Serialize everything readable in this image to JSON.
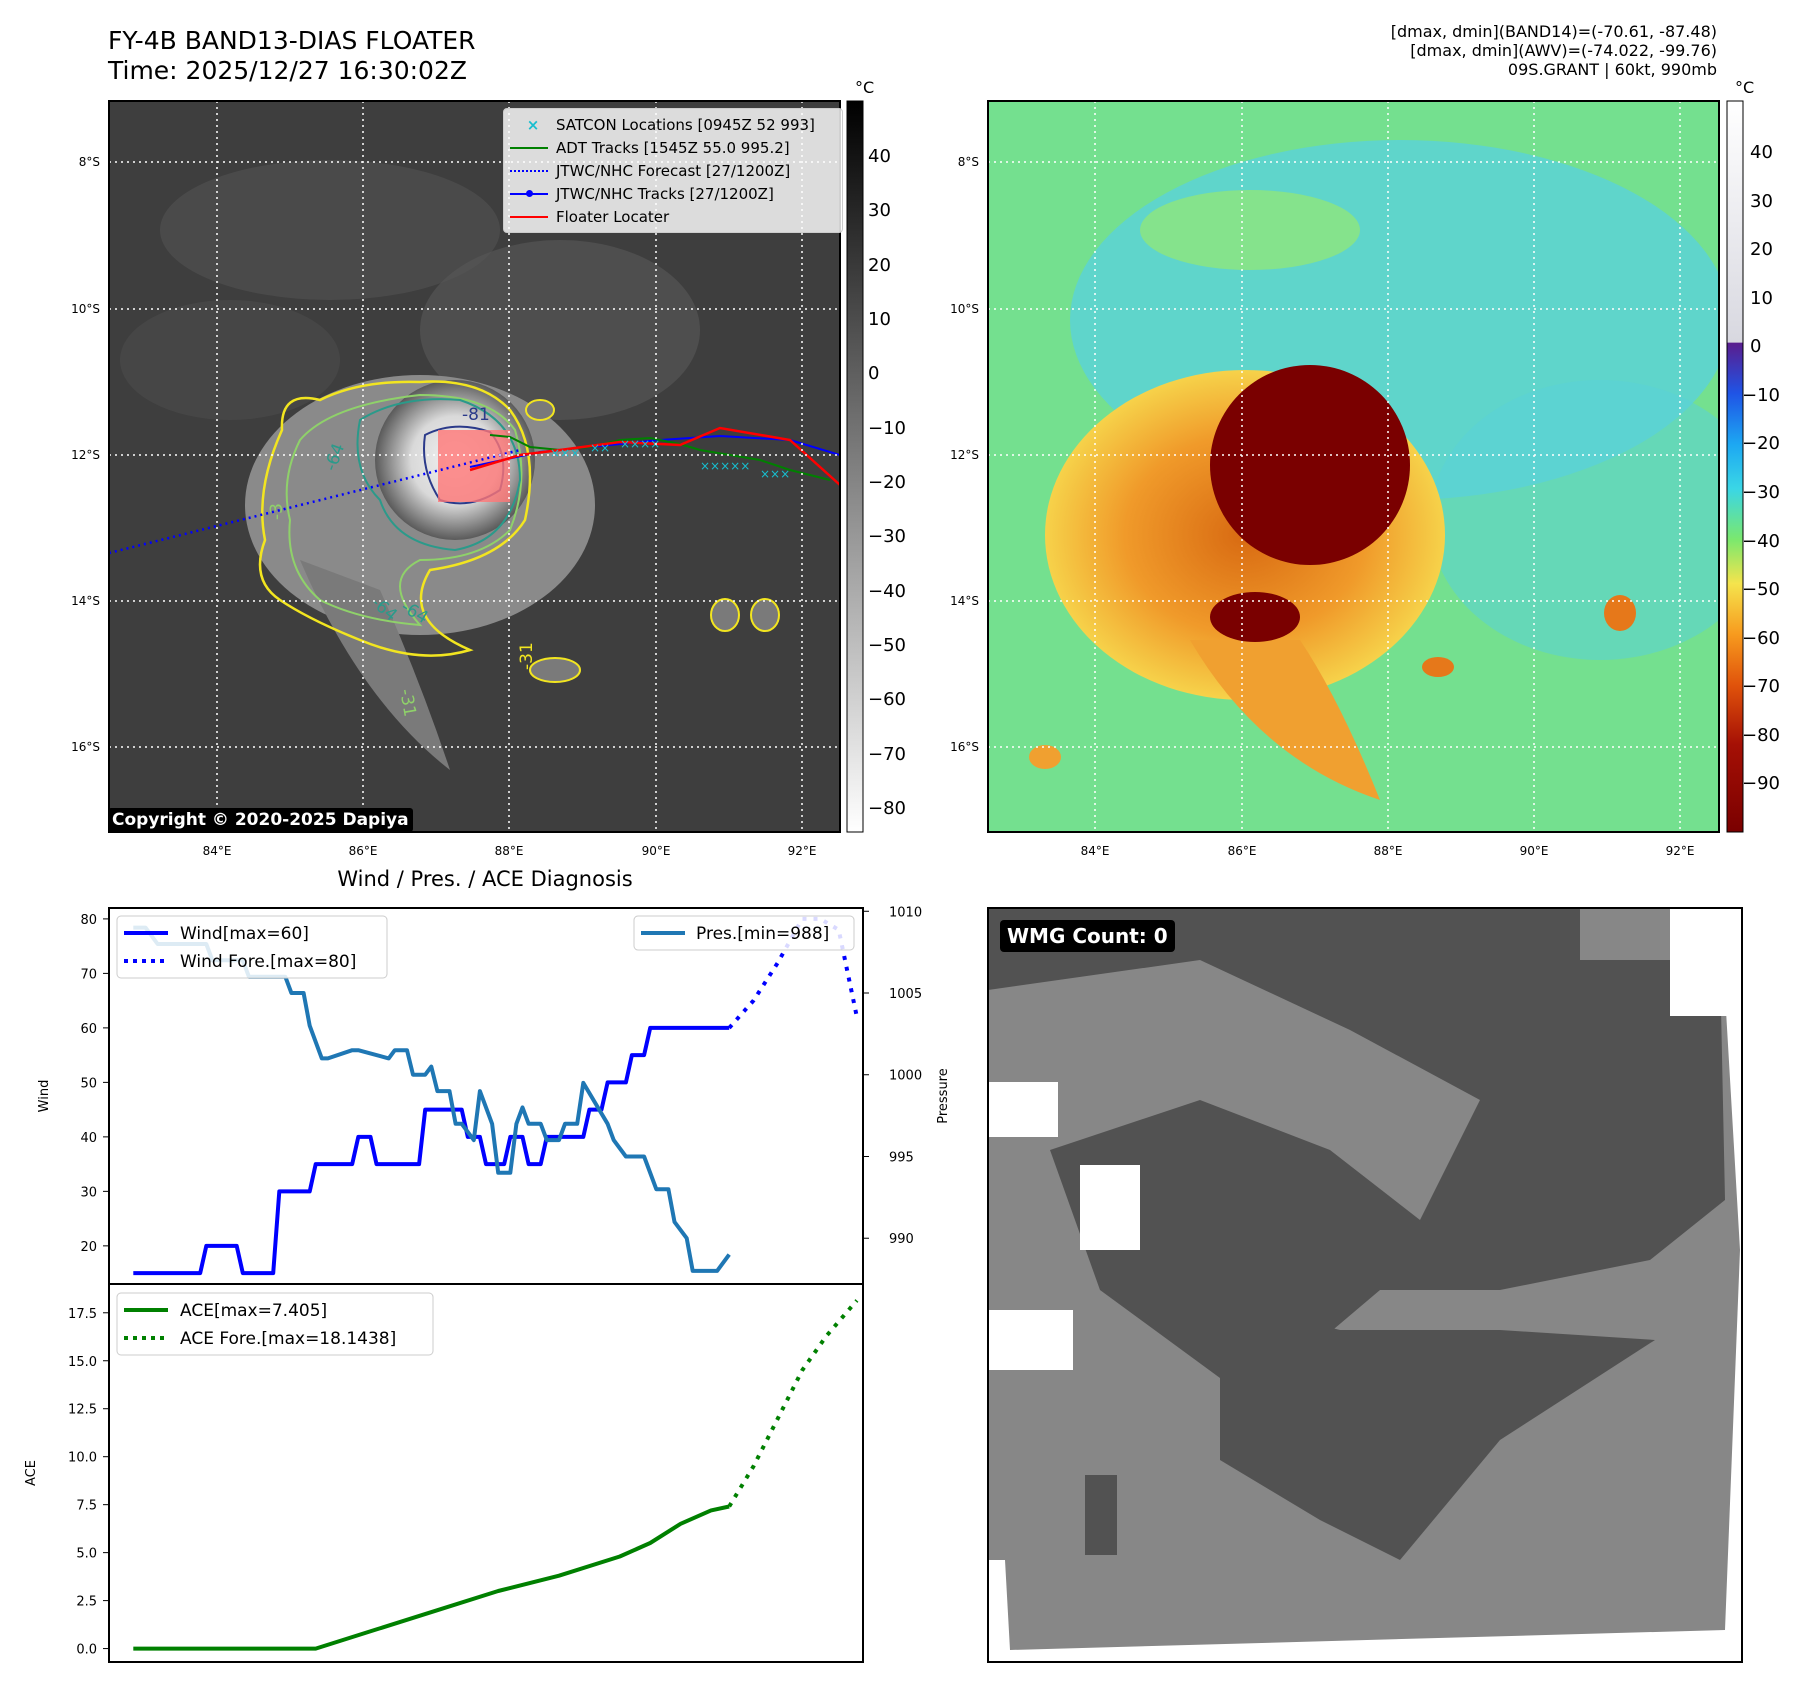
{
  "header": {
    "title_line1": "FY-4B BAND13-DIAS FLOATER",
    "title_line2": "Time: 2025/12/27 16:30:02Z",
    "meta_line1": "[dmax, dmin](BAND14)=(-70.61, -87.48)",
    "meta_line2": "[dmax, dmin](AWV)=(-74.022, -99.76)",
    "meta_line3": "09S.GRANT | 60kt, 990mb",
    "unit": "°C"
  },
  "map": {
    "lat_labels": [
      "8°S",
      "10°S",
      "12°S",
      "14°S",
      "16°S"
    ],
    "lon_labels": [
      "84°E",
      "86°E",
      "88°E",
      "90°E",
      "92°E"
    ],
    "contour_labels": [
      "-81",
      "-64",
      "-64",
      "-64",
      "-31",
      "-31",
      "-3"
    ],
    "copyright": "Copyright © 2020-2025 Dapiya",
    "legend": [
      {
        "label": "SATCON Locations [0945Z 52 993]",
        "color": "#17becf"
      },
      {
        "label": "ADT Tracks [1545Z 55.0 995.2]",
        "color": "#008000"
      },
      {
        "label": "JTWC/NHC Forecast [27/1200Z]",
        "color": "#0000ff"
      },
      {
        "label": "JTWC/NHC Tracks [27/1200Z]",
        "color": "#0000ff"
      },
      {
        "label": "Floater Locater",
        "color": "#ff0000"
      }
    ]
  },
  "colorbars": {
    "gray_ticks": [
      "40",
      "30",
      "20",
      "10",
      "0",
      "−10",
      "−20",
      "−30",
      "−40",
      "−50",
      "−60",
      "−70",
      "−80"
    ],
    "color_ticks": [
      "40",
      "30",
      "20",
      "10",
      "0",
      "−10",
      "−20",
      "−30",
      "−40",
      "−50",
      "−60",
      "−70",
      "−80",
      "−90"
    ]
  },
  "wmg": {
    "label": "WMG Count: 0"
  },
  "chart_data": [
    {
      "type": "line",
      "title": "Wind / Pres. / ACE Diagnosis",
      "ylabel": "Wind",
      "ylabel_right": "Pressure",
      "ylim": [
        13,
        82
      ],
      "ylim_right": [
        987.2,
        1010.2
      ],
      "yticks": [
        20,
        30,
        40,
        50,
        60,
        70,
        80
      ],
      "yticks_right": [
        990,
        995,
        1000,
        1005,
        1010
      ],
      "xlim": [
        -4,
        120
      ],
      "series": [
        {
          "name": "Wind[max=60]",
          "style": "solid",
          "color": "#0000ff",
          "x": [
            0,
            11,
            12,
            17,
            18,
            23,
            24,
            29,
            30,
            36,
            37,
            39,
            40,
            47,
            48,
            54,
            55,
            57,
            58,
            61,
            62,
            64,
            65,
            67,
            68,
            74,
            75,
            77,
            78,
            81,
            82,
            84,
            85,
            88,
            89,
            93,
            94,
            98
          ],
          "values": [
            15,
            15,
            20,
            20,
            15,
            15,
            30,
            30,
            35,
            35,
            40,
            40,
            35,
            35,
            45,
            45,
            40,
            40,
            35,
            35,
            40,
            40,
            35,
            35,
            40,
            40,
            45,
            45,
            50,
            50,
            55,
            55,
            60,
            60,
            60,
            60,
            60,
            60
          ]
        },
        {
          "name": "Wind Fore.[max=80]",
          "style": "dotted",
          "color": "#0000ff",
          "x": [
            98,
            102,
            106,
            110,
            113,
            116,
            119
          ],
          "values": [
            60,
            65,
            72,
            80,
            80,
            78,
            62
          ]
        },
        {
          "name": "Pres.[min=988]",
          "style": "solid",
          "color": "#1f77b4",
          "axis": "right",
          "x": [
            0,
            2,
            4,
            12,
            13,
            18,
            19,
            25,
            26,
            28,
            29,
            31,
            32,
            36,
            37,
            42,
            43,
            45,
            46,
            47,
            48,
            49,
            50,
            51,
            52,
            53,
            54,
            56,
            57,
            59,
            60,
            62,
            63,
            64,
            65,
            67,
            68,
            70,
            71,
            73,
            74,
            78,
            79,
            81,
            82,
            84,
            86,
            88,
            89,
            91,
            92,
            94,
            96,
            98
          ],
          "values": [
            1009,
            1009,
            1008,
            1008,
            1007,
            1007,
            1006,
            1006,
            1005,
            1005,
            1003,
            1001,
            1001,
            1001.5,
            1001.5,
            1001,
            1001.5,
            1001.5,
            1000,
            1000,
            1000,
            1000.5,
            999,
            999,
            999,
            997,
            997,
            996,
            999,
            997,
            994,
            994,
            997,
            998,
            997,
            997,
            996,
            996,
            997,
            997,
            999.5,
            997,
            996,
            995,
            995,
            995,
            993,
            993,
            991,
            990,
            988,
            988,
            988,
            989
          ]
        }
      ]
    },
    {
      "type": "line",
      "ylabel": "ACE",
      "ylim": [
        -0.7,
        19
      ],
      "yticks": [
        0.0,
        2.5,
        5.0,
        7.5,
        10.0,
        12.5,
        15.0,
        17.5
      ],
      "xlim": [
        -4,
        120
      ],
      "series": [
        {
          "name": "ACE[max=7.405]",
          "style": "solid",
          "color": "#008000",
          "x": [
            0,
            20,
            30,
            40,
            50,
            60,
            70,
            80,
            85,
            90,
            95,
            98
          ],
          "values": [
            0,
            0,
            0,
            1,
            2,
            3,
            3.8,
            4.8,
            5.5,
            6.5,
            7.2,
            7.405
          ]
        },
        {
          "name": "ACE Fore.[max=18.1438]",
          "style": "dotted",
          "color": "#008000",
          "x": [
            98,
            102,
            106,
            110,
            114,
            119
          ],
          "values": [
            7.405,
            9.5,
            12,
            14.5,
            16.3,
            18.1438
          ]
        }
      ]
    }
  ]
}
